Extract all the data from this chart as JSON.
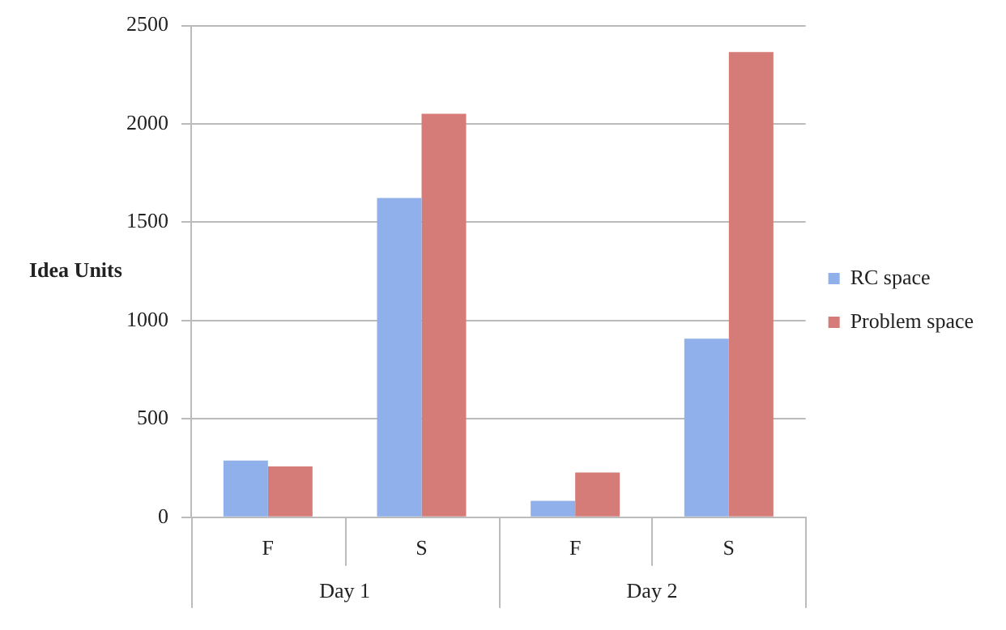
{
  "chart_data": {
    "type": "bar",
    "ylabel": "Idea Units",
    "categories": [
      "F",
      "S",
      "F",
      "S"
    ],
    "series": [
      {
        "name": "RC space",
        "color": "#8fb0ea",
        "values": [
          288,
          1623,
          84,
          908
        ]
      },
      {
        "name": "Problem space",
        "color": "#d67c78",
        "values": [
          259,
          2052,
          228,
          2366
        ]
      }
    ],
    "annotations": [
      "Day 1",
      "Day 2"
    ],
    "ylim": [
      0,
      2500
    ],
    "yticks": [
      0,
      500,
      1000,
      1500,
      2000,
      2500
    ],
    "grid": "y",
    "legend": "right"
  }
}
